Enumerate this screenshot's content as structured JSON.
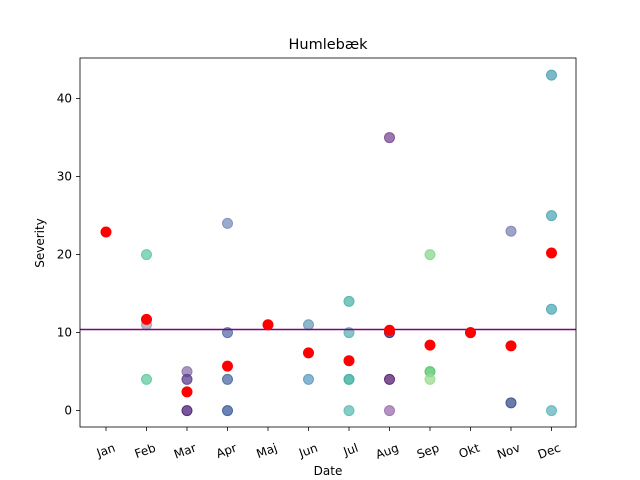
{
  "chart_data": {
    "type": "scatter",
    "title": "Humlebæk",
    "xlabel": "Date",
    "ylabel": "Severity",
    "categories": [
      "Jan",
      "Feb",
      "Mar",
      "Apr",
      "Maj",
      "Jun",
      "Jul",
      "Aug",
      "Sep",
      "Okt",
      "Nov",
      "Dec"
    ],
    "ylim": [
      -2.1,
      45.2
    ],
    "yticks": [
      0,
      10,
      20,
      30,
      40
    ],
    "grid": false,
    "mean_line": {
      "value": 10.4,
      "color": "#800080"
    },
    "points": [
      {
        "x": "Feb",
        "y": 20,
        "color": "#5fc9a2"
      },
      {
        "x": "Feb",
        "y": 11,
        "color": "#9fa3b3"
      },
      {
        "x": "Feb",
        "y": 4,
        "color": "#5fc9a2"
      },
      {
        "x": "Mar",
        "y": 5,
        "color": "#8b73a8"
      },
      {
        "x": "Mar",
        "y": 4,
        "color": "#5a3f8c"
      },
      {
        "x": "Mar",
        "y": 0,
        "color": "#4b1d78"
      },
      {
        "x": "Apr",
        "y": 24,
        "color": "#7b8ebb"
      },
      {
        "x": "Apr",
        "y": 10,
        "color": "#5870a8"
      },
      {
        "x": "Apr",
        "y": 4,
        "color": "#4a6aa2"
      },
      {
        "x": "Apr",
        "y": 0,
        "color": "#3a5a9a"
      },
      {
        "x": "Jun",
        "y": 11,
        "color": "#6a9cba"
      },
      {
        "x": "Jun",
        "y": 4,
        "color": "#5f9bbd"
      },
      {
        "x": "Jul",
        "y": 14,
        "color": "#4fb3aa"
      },
      {
        "x": "Jul",
        "y": 10,
        "color": "#5fb0b4"
      },
      {
        "x": "Jul",
        "y": 4,
        "color": "#2fa89a"
      },
      {
        "x": "Jul",
        "y": 0,
        "color": "#5cbcb2"
      },
      {
        "x": "Aug",
        "y": 35,
        "color": "#7a4a92"
      },
      {
        "x": "Aug",
        "y": 10,
        "color": "#4b1d78"
      },
      {
        "x": "Aug",
        "y": 4,
        "color": "#561e6e"
      },
      {
        "x": "Aug",
        "y": 0,
        "color": "#9a6fae"
      },
      {
        "x": "Sep",
        "y": 20,
        "color": "#86d88e"
      },
      {
        "x": "Sep",
        "y": 5,
        "color": "#4cc466"
      },
      {
        "x": "Sep",
        "y": 4,
        "color": "#9adb93"
      },
      {
        "x": "Okt",
        "y": 10,
        "color": "#5f4ea8"
      },
      {
        "x": "Nov",
        "y": 23,
        "color": "#7f84b5"
      },
      {
        "x": "Nov",
        "y": 1,
        "color": "#3b4f8f"
      },
      {
        "x": "Dec",
        "y": 43,
        "color": "#4fa2b4"
      },
      {
        "x": "Dec",
        "y": 25,
        "color": "#4fa8b6"
      },
      {
        "x": "Dec",
        "y": 13,
        "color": "#4fa8b6"
      },
      {
        "x": "Dec",
        "y": 0,
        "color": "#5fb4bc"
      }
    ],
    "means": [
      {
        "x": "Jan",
        "y": 22.9
      },
      {
        "x": "Feb",
        "y": 11.7
      },
      {
        "x": "Mar",
        "y": 2.4
      },
      {
        "x": "Apr",
        "y": 5.7
      },
      {
        "x": "Maj",
        "y": 11.0
      },
      {
        "x": "Jun",
        "y": 7.4
      },
      {
        "x": "Jul",
        "y": 6.4
      },
      {
        "x": "Aug",
        "y": 10.3
      },
      {
        "x": "Sep",
        "y": 8.4
      },
      {
        "x": "Okt",
        "y": 10.0
      },
      {
        "x": "Nov",
        "y": 8.3
      },
      {
        "x": "Dec",
        "y": 20.2
      }
    ],
    "mean_color": "#ff0000"
  }
}
